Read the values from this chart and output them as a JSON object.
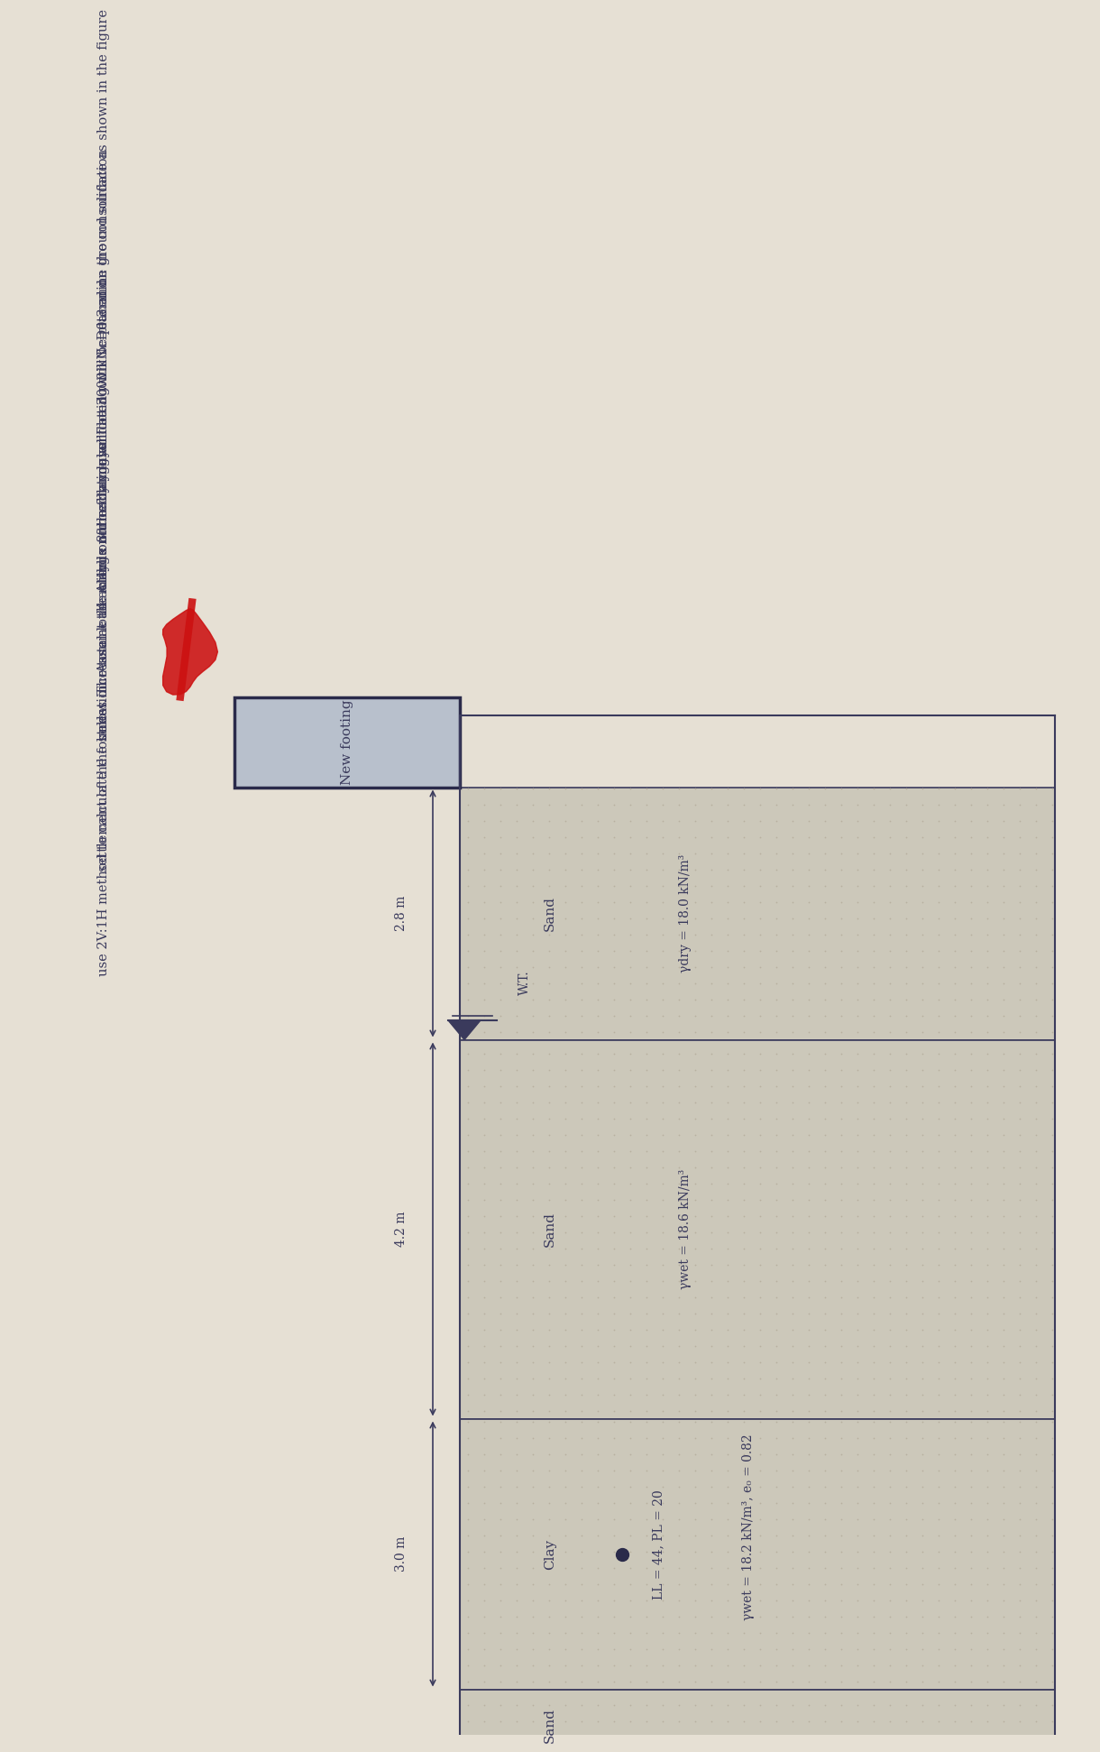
{
  "bg_color": "#e6e0d4",
  "text_color": "#3a3a5c",
  "question_lines": [
    "4. A 4m x 8m rectangular footing will be placed on ground surface as shown in the figure",
    "below. The total load acting on the footing will be 3000 kN. Determine the consolidation",
    "settlement of the foundation. Assume the clay is normally consolidated with Cc=0.3 and",
    "use 2V:1H method to calculate the stress increase at the middle of the clay layer"
  ],
  "footing_label": "New footing",
  "footing_color": "#b8c0cc",
  "footing_border": "#2a2a4a",
  "dotted_bg": "#ccc8ba",
  "dot_color": "#2a2a4a",
  "wt_label": "W.T.",
  "layer_names": [
    "Sand",
    "Sand",
    "Clay",
    "Sand"
  ],
  "layer_param1": "γdry = 18.0 kN/m³",
  "layer_param2": "γwet = 18.6 kN/m³",
  "layer_param3a": "γwet = 18.2 kN/m³, e₀ = 0.82",
  "layer_param3b": "LL = 44, PL = 20",
  "dim1": "2.8 m",
  "dim2": "4.2 m",
  "dim3": "3.0 m",
  "red_mark_color": "#cc1111"
}
